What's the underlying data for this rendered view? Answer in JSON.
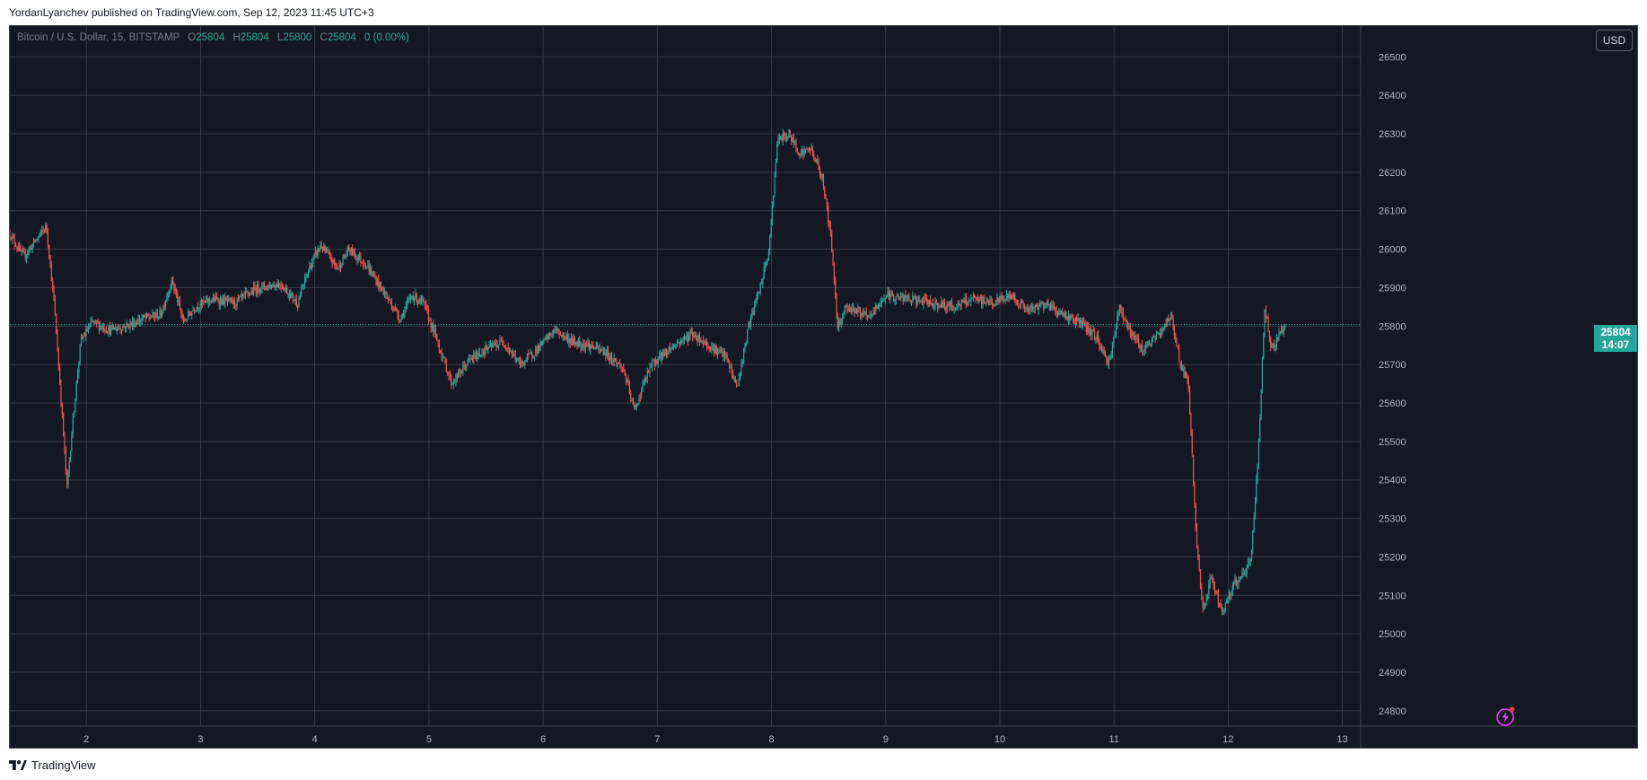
{
  "header": {
    "credit": "YordanLyanchev published on TradingView.com, Sep 12, 2023 11:45 UTC+3"
  },
  "legend": {
    "symbol": "Bitcoin / U.S. Dollar, 15, BITSTAMP",
    "o_label": "O",
    "o": "25804",
    "h_label": "H",
    "h": "25804",
    "l_label": "L",
    "l": "25800",
    "c_label": "C",
    "c": "25804",
    "change": "0 (0.00%)"
  },
  "currency_button": "USD",
  "price_tag": {
    "price": "25804",
    "countdown": "14:07"
  },
  "footer": {
    "brand": "TradingView"
  },
  "colors": {
    "up": "#26a69a",
    "down": "#ef5350",
    "background": "#141823",
    "grid": "#363a45",
    "axis_text": "#b2b5be"
  },
  "icons": {
    "alert": "lightning-bolt-icon",
    "logo": "tradingview-logo-icon"
  },
  "chart_data": {
    "type": "candlestick",
    "title": "",
    "xlabel": "",
    "ylabel": "",
    "x_ticks": [
      "2",
      "3",
      "4",
      "5",
      "6",
      "7",
      "8",
      "9",
      "10",
      "11",
      "12",
      "13"
    ],
    "x_tick_days": [
      2,
      3,
      4,
      5,
      6,
      7,
      8,
      9,
      10,
      11,
      12,
      13
    ],
    "xlim": [
      1.33,
      13.16
    ],
    "y_ticks": [
      "26500",
      "26400",
      "26300",
      "26200",
      "26100",
      "26000",
      "25900",
      "25800",
      "25700",
      "25600",
      "25500",
      "25400",
      "25300",
      "25200",
      "25100",
      "25000",
      "24900",
      "24800"
    ],
    "ylim": [
      24760,
      26580
    ],
    "last_price": 25804,
    "grid": true,
    "price_path": [
      [
        1.33,
        26040
      ],
      [
        1.45,
        25980
      ],
      [
        1.55,
        26020
      ],
      [
        1.65,
        26060
      ],
      [
        1.72,
        25850
      ],
      [
        1.78,
        25600
      ],
      [
        1.83,
        25380
      ],
      [
        1.88,
        25550
      ],
      [
        1.95,
        25760
      ],
      [
        2.05,
        25810
      ],
      [
        2.2,
        25790
      ],
      [
        2.35,
        25800
      ],
      [
        2.5,
        25820
      ],
      [
        2.65,
        25830
      ],
      [
        2.75,
        25920
      ],
      [
        2.85,
        25810
      ],
      [
        2.95,
        25850
      ],
      [
        3.1,
        25870
      ],
      [
        3.3,
        25860
      ],
      [
        3.5,
        25900
      ],
      [
        3.7,
        25910
      ],
      [
        3.85,
        25860
      ],
      [
        3.95,
        25950
      ],
      [
        4.05,
        26010
      ],
      [
        4.2,
        25950
      ],
      [
        4.3,
        26000
      ],
      [
        4.45,
        25960
      ],
      [
        4.6,
        25890
      ],
      [
        4.75,
        25820
      ],
      [
        4.85,
        25880
      ],
      [
        4.95,
        25860
      ],
      [
        5.05,
        25780
      ],
      [
        5.2,
        25650
      ],
      [
        5.35,
        25710
      ],
      [
        5.5,
        25740
      ],
      [
        5.65,
        25760
      ],
      [
        5.8,
        25700
      ],
      [
        5.95,
        25740
      ],
      [
        6.1,
        25790
      ],
      [
        6.25,
        25760
      ],
      [
        6.4,
        25750
      ],
      [
        6.55,
        25730
      ],
      [
        6.7,
        25690
      ],
      [
        6.8,
        25580
      ],
      [
        6.88,
        25650
      ],
      [
        6.95,
        25700
      ],
      [
        7.1,
        25740
      ],
      [
        7.3,
        25780
      ],
      [
        7.45,
        25750
      ],
      [
        7.6,
        25720
      ],
      [
        7.7,
        25640
      ],
      [
        7.8,
        25800
      ],
      [
        7.9,
        25900
      ],
      [
        7.98,
        26000
      ],
      [
        8.05,
        26280
      ],
      [
        8.15,
        26300
      ],
      [
        8.25,
        26250
      ],
      [
        8.35,
        26260
      ],
      [
        8.45,
        26180
      ],
      [
        8.52,
        26030
      ],
      [
        8.58,
        25800
      ],
      [
        8.65,
        25850
      ],
      [
        8.75,
        25840
      ],
      [
        8.85,
        25820
      ],
      [
        9.0,
        25880
      ],
      [
        9.2,
        25870
      ],
      [
        9.4,
        25860
      ],
      [
        9.6,
        25850
      ],
      [
        9.75,
        25870
      ],
      [
        9.95,
        25860
      ],
      [
        10.1,
        25880
      ],
      [
        10.25,
        25840
      ],
      [
        10.4,
        25860
      ],
      [
        10.55,
        25830
      ],
      [
        10.7,
        25810
      ],
      [
        10.85,
        25770
      ],
      [
        10.95,
        25700
      ],
      [
        11.05,
        25850
      ],
      [
        11.15,
        25780
      ],
      [
        11.25,
        25740
      ],
      [
        11.4,
        25780
      ],
      [
        11.5,
        25830
      ],
      [
        11.58,
        25700
      ],
      [
        11.65,
        25650
      ],
      [
        11.72,
        25250
      ],
      [
        11.78,
        25050
      ],
      [
        11.85,
        25150
      ],
      [
        11.95,
        25050
      ],
      [
        12.05,
        25130
      ],
      [
        12.15,
        25160
      ],
      [
        12.2,
        25200
      ],
      [
        12.26,
        25450
      ],
      [
        12.32,
        25850
      ],
      [
        12.38,
        25740
      ],
      [
        12.45,
        25780
      ],
      [
        12.5,
        25804
      ]
    ]
  }
}
